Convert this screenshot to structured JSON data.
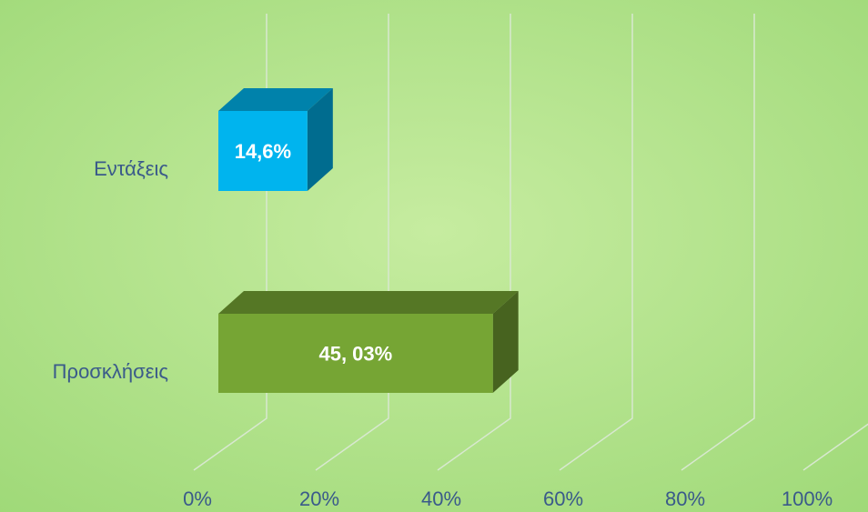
{
  "chart_data": {
    "type": "bar3d",
    "categories": [
      "Εντάξεις",
      "Προσκλήσεις"
    ],
    "values": [
      14.6,
      45.03
    ],
    "value_labels": [
      "14,6%",
      "45, 03%"
    ],
    "colors": [
      "#00b4ee",
      "#76a534"
    ],
    "xlim": [
      0,
      100
    ],
    "xticks": [
      {
        "value": 0,
        "label": "0%"
      },
      {
        "value": 20,
        "label": "20%"
      },
      {
        "value": 40,
        "label": "40%"
      },
      {
        "value": 60,
        "label": "60%"
      },
      {
        "value": 80,
        "label": "80%"
      },
      {
        "value": 100,
        "label": "100%"
      }
    ],
    "grid": true
  }
}
